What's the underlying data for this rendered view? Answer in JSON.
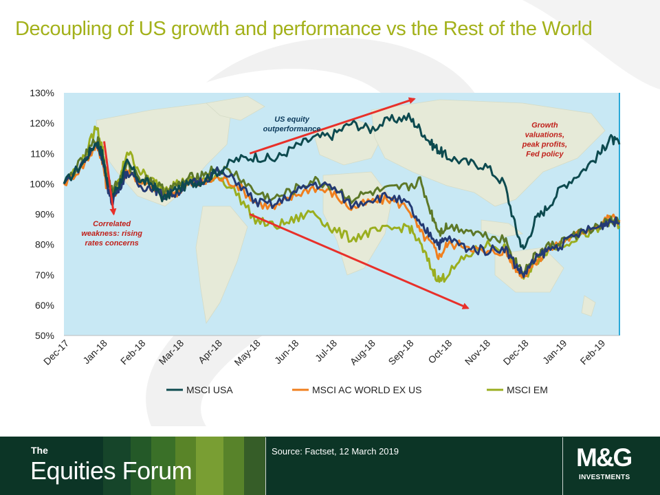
{
  "title": "Decoupling of US growth and performance vs the Rest of the World",
  "footer": {
    "the": "The",
    "brand": "Equities Forum",
    "source": "Source: Factset, 12 March 2019",
    "logo_main": "M&G",
    "logo_sub": "INVESTMENTS"
  },
  "colors": {
    "title": "#a3b11a",
    "footer_bg": "#0c3526",
    "arrow": "#e8302a",
    "annotation_text_us": "#0c3a5b",
    "annotation_text_red": "#c0201a",
    "map_water": "#c8e8f4",
    "map_land": "#e6ead8"
  },
  "chart_data": {
    "type": "line",
    "ylim": [
      50,
      130
    ],
    "yticks": [
      "50%",
      "60%",
      "70%",
      "80%",
      "90%",
      "100%",
      "110%",
      "120%",
      "130%"
    ],
    "xticks": [
      "Dec-17",
      "Jan-18",
      "Feb-18",
      "Mar-18",
      "Apr-18",
      "May-18",
      "Jun-18",
      "Jul-18",
      "Aug-18",
      "Sep-18",
      "Oct-18",
      "Nov-18",
      "Dec-18",
      "Jan-19",
      "Feb-19"
    ],
    "x_months": [
      0,
      0.5,
      0.85,
      1.0,
      1.1,
      1.25,
      1.45,
      1.65,
      2.0,
      2.3,
      2.6,
      2.9,
      3.3,
      3.6,
      4.0,
      4.5,
      5.0,
      5.5,
      6.0,
      6.5,
      7.0,
      7.5,
      8.0,
      8.5,
      9.0,
      9.3,
      9.6,
      9.8,
      10.0,
      10.5,
      11.0,
      11.5,
      11.8,
      12.0,
      12.3,
      12.6,
      13.0,
      13.5,
      14.0,
      14.25,
      14.5
    ],
    "series": [
      {
        "name": "MSCI USA",
        "color": "#0d4a4f",
        "values": [
          100,
          107,
          114,
          110,
          103,
          96,
          100,
          107,
          101,
          100,
          95,
          98,
          100,
          101,
          104,
          108,
          109,
          108,
          112,
          115,
          116,
          120,
          118,
          121,
          122,
          118,
          113,
          111,
          109,
          107,
          106,
          100,
          85,
          78,
          88,
          92,
          99,
          104,
          110,
          115,
          113
        ]
      },
      {
        "name": "MSCI AC WORLD EX US",
        "color": "#f07f1e",
        "values": [
          100,
          106,
          113,
          108,
          100,
          96,
          99,
          105,
          100,
          99,
          96,
          97,
          100,
          100,
          102,
          100,
          94,
          92,
          96,
          99,
          97,
          92,
          94,
          95,
          92,
          84,
          80,
          76,
          80,
          80,
          77,
          78,
          72,
          70,
          74,
          78,
          81,
          84,
          87,
          89,
          88
        ]
      },
      {
        "name": "MSCI EM",
        "color": "#9aae1f",
        "values": [
          100,
          108,
          119,
          112,
          104,
          95,
          101,
          111,
          104,
          101,
          99,
          100,
          101,
          101,
          103,
          97,
          88,
          86,
          88,
          91,
          85,
          82,
          84,
          85,
          86,
          80,
          72,
          68,
          70,
          76,
          80,
          79,
          73,
          69,
          74,
          78,
          80,
          83,
          85,
          88,
          86
        ]
      },
      {
        "name": "",
        "color": "#243a74",
        "values": [
          100,
          107,
          113,
          109,
          101,
          94,
          99,
          104,
          99,
          99,
          96,
          97,
          100,
          101,
          104,
          101,
          94,
          93,
          97,
          100,
          99,
          93,
          95,
          96,
          93,
          86,
          83,
          80,
          82,
          79,
          78,
          79,
          73,
          70,
          75,
          78,
          80,
          84,
          86,
          88,
          87
        ]
      },
      {
        "name": "",
        "color": "#5d7828",
        "values": [
          100,
          108,
          115,
          111,
          103,
          98,
          101,
          106,
          102,
          101,
          98,
          99,
          102,
          103,
          105,
          103,
          97,
          95,
          98,
          101,
          99,
          95,
          97,
          98,
          99,
          101,
          90,
          84,
          86,
          85,
          83,
          82,
          74,
          71,
          76,
          79,
          81,
          84,
          86,
          88,
          87
        ]
      }
    ],
    "legend": [
      "MSCI USA",
      "MSCI AC WORLD EX US",
      "MSCI EM"
    ],
    "annotations": [
      {
        "text": "US equity\noutperformance",
        "x_month": 5.95,
        "y": 120.5,
        "color": "#0c3a5b"
      },
      {
        "text": "Growth\nvaluations,\npeak profits,\nFed policy",
        "x_month": 12.55,
        "y": 118.5,
        "color": "#c0201a"
      },
      {
        "text": "Correlated\nweakness: rising\nrates concerns",
        "x_month": 1.25,
        "y": 86,
        "color": "#c0201a"
      }
    ],
    "arrows": [
      {
        "from": [
          4.85,
          110
        ],
        "to": [
          9.15,
          128
        ]
      },
      {
        "from": [
          4.85,
          90
        ],
        "to": [
          10.55,
          59
        ]
      },
      {
        "from": [
          1.05,
          114
        ],
        "to": [
          1.3,
          90
        ]
      }
    ]
  }
}
